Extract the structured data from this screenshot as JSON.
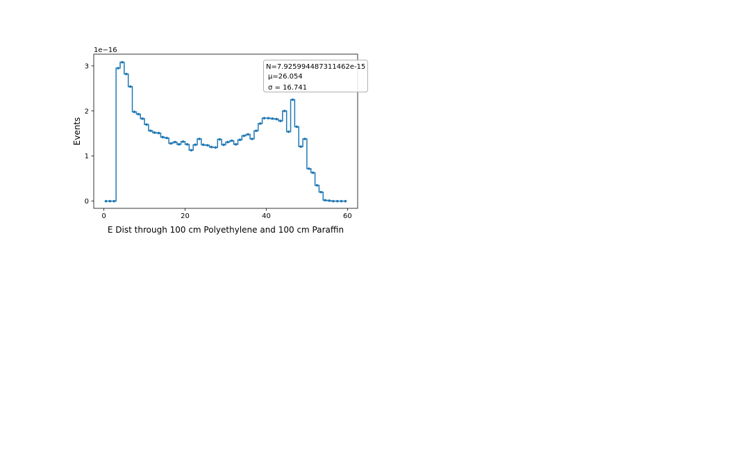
{
  "chart_data": {
    "type": "line",
    "title": "",
    "xlabel": "E Dist through 100 cm Polyethylene and 100 cm Paraffin",
    "ylabel": "Events",
    "y_multiplier_label": "1e−16",
    "xlim": [
      -2.5,
      62.5
    ],
    "ylim": [
      -0.16,
      3.26
    ],
    "x_ticks": [
      0,
      20,
      40,
      60
    ],
    "x_tick_labels": [
      "0",
      "20",
      "40",
      "60"
    ],
    "y_ticks": [
      0,
      1,
      2,
      3
    ],
    "y_tick_labels": [
      "0",
      "1",
      "2",
      "3"
    ],
    "grid": false,
    "drawstyle": "steps-mid",
    "marker": "dot",
    "series": [
      {
        "color": "#1f77b4",
        "x": [
          0.5,
          1.5,
          2.5,
          3.5,
          4.5,
          5.5,
          6.5,
          7.5,
          8.5,
          9.5,
          10.5,
          11.5,
          12.5,
          13.5,
          14.5,
          15.5,
          16.5,
          17.5,
          18.5,
          19.5,
          20.5,
          21.5,
          22.5,
          23.5,
          24.5,
          25.5,
          26.5,
          27.5,
          28.5,
          29.5,
          30.5,
          31.5,
          32.5,
          33.5,
          34.5,
          35.5,
          36.5,
          37.5,
          38.5,
          39.5,
          40.5,
          41.5,
          42.5,
          43.5,
          44.5,
          45.5,
          46.5,
          47.5,
          48.5,
          49.5,
          50.5,
          51.5,
          52.5,
          53.5,
          54.5,
          55.5,
          56.5,
          57.5,
          58.5,
          59.5
        ],
        "y": [
          0,
          0,
          0,
          2.95,
          3.08,
          2.82,
          2.54,
          1.98,
          1.93,
          1.83,
          1.7,
          1.56,
          1.52,
          1.51,
          1.42,
          1.4,
          1.28,
          1.31,
          1.26,
          1.32,
          1.26,
          1.13,
          1.25,
          1.38,
          1.25,
          1.24,
          1.2,
          1.19,
          1.37,
          1.25,
          1.31,
          1.34,
          1.26,
          1.36,
          1.45,
          1.48,
          1.38,
          1.56,
          1.72,
          1.84,
          1.84,
          1.83,
          1.82,
          1.78,
          2.0,
          1.54,
          2.25,
          1.65,
          1.21,
          1.38,
          0.72,
          0.63,
          0.35,
          0.2,
          0.02,
          0.01,
          0,
          0,
          0,
          0
        ]
      }
    ],
    "legend_box": {
      "placement": "top-right",
      "lines": [
        "N=7.925994487311462e-15",
        "μ=26.054",
        "σ = 16.741"
      ]
    }
  }
}
